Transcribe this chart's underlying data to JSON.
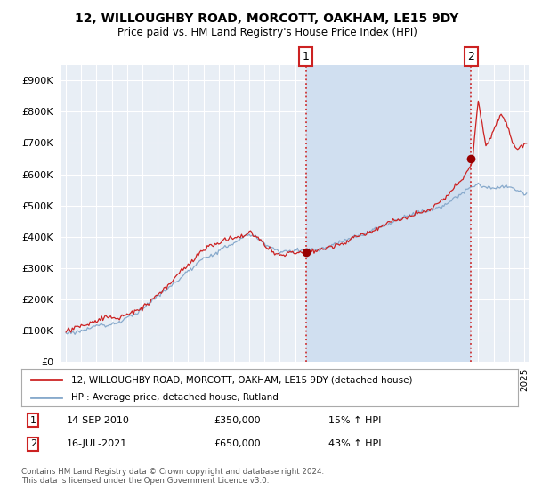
{
  "title1": "12, WILLOUGHBY ROAD, MORCOTT, OAKHAM, LE15 9DY",
  "title2": "Price paid vs. HM Land Registry's House Price Index (HPI)",
  "plot_bg": "#e8eef5",
  "highlight_bg": "#d0dff0",
  "grid_color": "#ffffff",
  "line1_color": "#cc2222",
  "line2_color": "#88aacc",
  "legend1": "12, WILLOUGHBY ROAD, MORCOTT, OAKHAM, LE15 9DY (detached house)",
  "legend2": "HPI: Average price, detached house, Rutland",
  "sale1_date": "14-SEP-2010",
  "sale1_price": "£350,000",
  "sale1_hpi": "15% ↑ HPI",
  "sale2_date": "16-JUL-2021",
  "sale2_price": "£650,000",
  "sale2_hpi": "43% ↑ HPI",
  "footnote": "Contains HM Land Registry data © Crown copyright and database right 2024.\nThis data is licensed under the Open Government Licence v3.0.",
  "ylim": [
    0,
    950000
  ],
  "yticks": [
    0,
    100000,
    200000,
    300000,
    400000,
    500000,
    600000,
    700000,
    800000,
    900000
  ],
  "xmin": 1994.7,
  "xmax": 2025.3,
  "vline1_x": 2010.71,
  "vline2_x": 2021.54,
  "sale1_marker_x": 2010.71,
  "sale1_marker_y": 350000,
  "sale2_marker_x": 2021.54,
  "sale2_marker_y": 650000
}
